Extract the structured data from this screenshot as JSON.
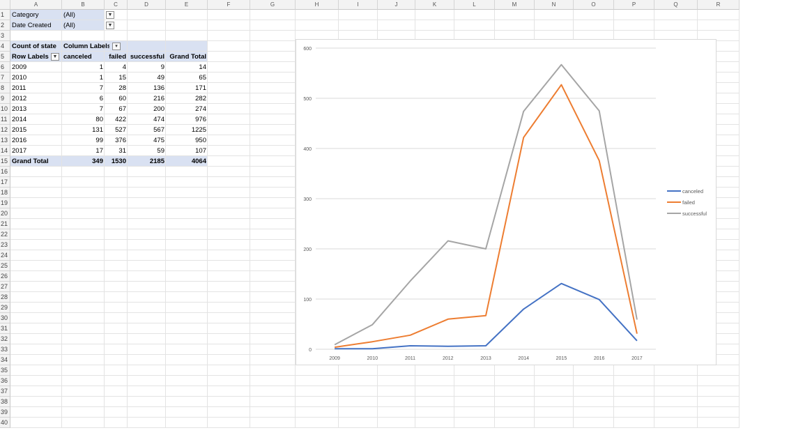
{
  "columns": [
    "A",
    "B",
    "C",
    "D",
    "E",
    "F",
    "G",
    "H",
    "I",
    "J",
    "K",
    "L",
    "M",
    "N",
    "O",
    "P",
    "Q",
    "R"
  ],
  "rows": [
    "1",
    "2",
    "3",
    "4",
    "5",
    "6",
    "7",
    "8",
    "9",
    "10",
    "11",
    "12",
    "13",
    "14",
    "15",
    "16",
    "17",
    "18",
    "19",
    "20",
    "21",
    "22",
    "23",
    "24",
    "25",
    "26",
    "27",
    "28",
    "29",
    "30",
    "31",
    "32",
    "33",
    "34",
    "35",
    "36",
    "37",
    "38",
    "39",
    "40"
  ],
  "filters": [
    {
      "label": "Category",
      "value": "(All)"
    },
    {
      "label": "Date Created",
      "value": "(All)"
    }
  ],
  "pivot": {
    "corner_label": "Count of state",
    "column_labels": "Column Labels",
    "row_labels": "Row Labels",
    "headers": [
      "canceled",
      "failed",
      "successful",
      "Grand Total"
    ],
    "rows": [
      {
        "year": "2009",
        "values": [
          "1",
          "4",
          "9",
          "14"
        ]
      },
      {
        "year": "2010",
        "values": [
          "1",
          "15",
          "49",
          "65"
        ]
      },
      {
        "year": "2011",
        "values": [
          "7",
          "28",
          "136",
          "171"
        ]
      },
      {
        "year": "2012",
        "values": [
          "6",
          "60",
          "216",
          "282"
        ]
      },
      {
        "year": "2013",
        "values": [
          "7",
          "67",
          "200",
          "274"
        ]
      },
      {
        "year": "2014",
        "values": [
          "80",
          "422",
          "474",
          "976"
        ]
      },
      {
        "year": "2015",
        "values": [
          "131",
          "527",
          "567",
          "1225"
        ]
      },
      {
        "year": "2016",
        "values": [
          "99",
          "376",
          "475",
          "950"
        ]
      },
      {
        "year": "2017",
        "values": [
          "17",
          "31",
          "59",
          "107"
        ]
      }
    ],
    "grand_total": {
      "label": "Grand Total",
      "values": [
        "349",
        "1530",
        "2185",
        "4064"
      ]
    }
  },
  "chart_data": {
    "type": "line",
    "categories": [
      "2009",
      "2010",
      "2011",
      "2012",
      "2013",
      "2014",
      "2015",
      "2016",
      "2017"
    ],
    "series": [
      {
        "name": "canceled",
        "color": "#4472c4",
        "values": [
          1,
          1,
          7,
          6,
          7,
          80,
          131,
          99,
          17
        ]
      },
      {
        "name": "failed",
        "color": "#ed7d31",
        "values": [
          4,
          15,
          28,
          60,
          67,
          422,
          527,
          376,
          31
        ]
      },
      {
        "name": "successful",
        "color": "#a5a5a5",
        "values": [
          9,
          49,
          136,
          216,
          200,
          474,
          567,
          475,
          59
        ]
      }
    ],
    "ylim": [
      0,
      600
    ],
    "yticks": [
      "0",
      "100",
      "200",
      "300",
      "400",
      "500",
      "600"
    ],
    "grid": true,
    "legend": "right"
  }
}
